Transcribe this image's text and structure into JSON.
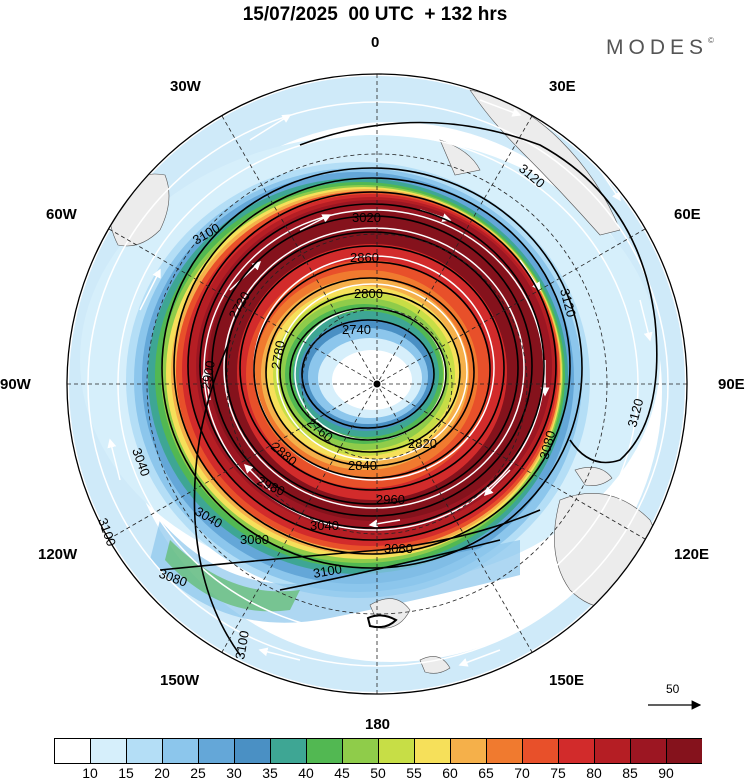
{
  "title": "15/07/2025  00 UTC  + 132 hrs",
  "brand": "MODES",
  "brand_mark": "©",
  "longitude_labels": {
    "n": "0",
    "ne": "30E",
    "nw": "30W",
    "ene": "60E",
    "wnw": "60W",
    "e": "90E",
    "w": "90W",
    "ese": "120E",
    "wsw": "120W",
    "se": "150E",
    "sw": "150W",
    "s": "180"
  },
  "reference_vector": {
    "label": "50"
  },
  "contour_labels": [
    "3120",
    "3120",
    "3120",
    "3100",
    "3100",
    "3100",
    "3100",
    "3080",
    "3080",
    "3080",
    "3060",
    "3040",
    "3040",
    "3040",
    "3020",
    "2980",
    "2960",
    "2900",
    "2880",
    "2860",
    "2840",
    "2820",
    "2800",
    "2780",
    "2760",
    "2740",
    "2720"
  ],
  "colorbar": {
    "ticks": [
      "10",
      "15",
      "20",
      "25",
      "30",
      "35",
      "40",
      "45",
      "50",
      "55",
      "60",
      "65",
      "70",
      "75",
      "80",
      "85",
      "90"
    ],
    "colors": [
      "#ffffff",
      "#d6effb",
      "#b4def6",
      "#8cc6ec",
      "#64a7d8",
      "#4a90c4",
      "#3ea694",
      "#52b852",
      "#8fcc4a",
      "#c7de46",
      "#f6e05a",
      "#f5b04a",
      "#f07a2f",
      "#e8502a",
      "#d22b2b",
      "#b51e24",
      "#9c1622",
      "#85121c"
    ]
  }
}
